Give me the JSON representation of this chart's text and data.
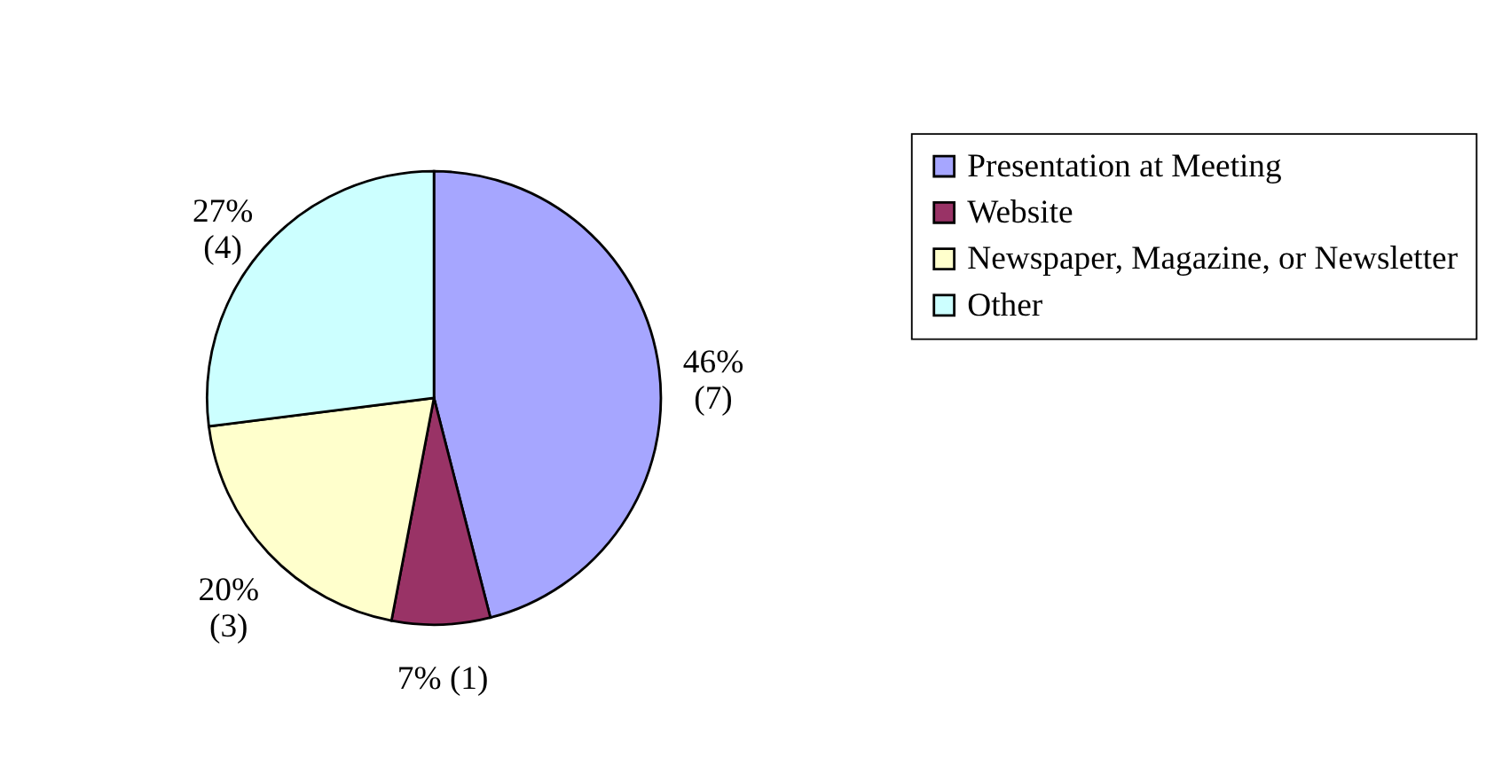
{
  "chart_data": {
    "type": "pie",
    "categories": [
      "Presentation at Meeting",
      "Website",
      "Newspaper, Magazine, or Newsletter",
      "Other"
    ],
    "values": [
      46,
      7,
      20,
      27
    ],
    "colors": [
      "#a6a6ff",
      "#993366",
      "#ffffcc",
      "#ccffff"
    ],
    "value_labels": [
      "46%\n(7)",
      "7% (1)",
      "20%\n(3)",
      "27%\n(4)"
    ],
    "legend": "right"
  }
}
